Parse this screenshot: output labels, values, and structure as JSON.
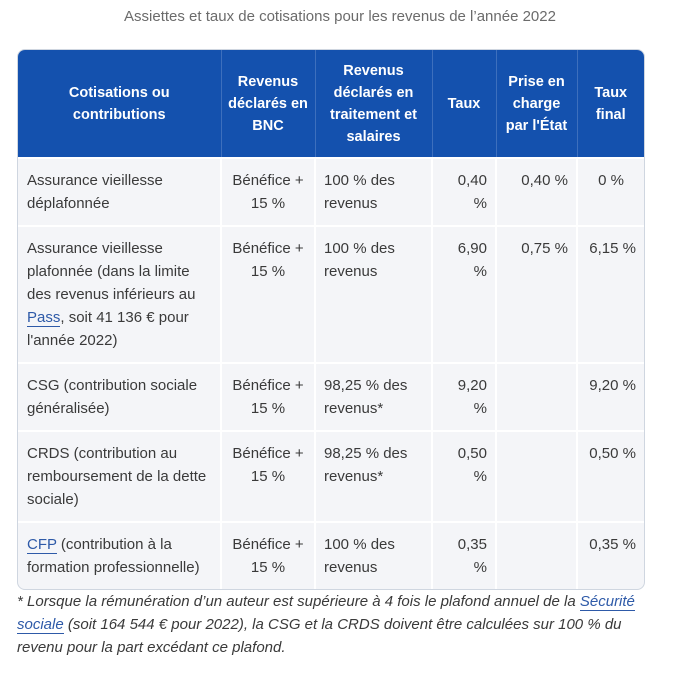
{
  "caption": "Assiettes et taux de cotisations pour les revenus de l’année 2022",
  "headers": {
    "col1": "Cotisations ou contributions",
    "col2": "Revenus déclarés en BNC",
    "col3": "Revenus déclarés en traitement et salaires",
    "col4": "Taux",
    "col5": "Prise en charge par l'État",
    "col6": "Taux final"
  },
  "rows": [
    {
      "label": "Assurance vieillesse déplafonnée",
      "bnc": "Bénéfice + 15 %",
      "ts": "100 % des revenus",
      "taux": "0,40 %",
      "etat": "0,40 %",
      "final": "0 %"
    },
    {
      "label_pre": "Assurance vieillesse plafonnée (dans la limite des revenus inférieurs au ",
      "label_link": "Pass",
      "label_post": ", soit 41 136 € pour l'année 2022)",
      "bnc": "Bénéfice + 15 %",
      "ts": "100 % des revenus",
      "taux": "6,90 %",
      "etat": "0,75 %",
      "final": "6,15 %"
    },
    {
      "label": "CSG (contribution sociale généralisée)",
      "bnc": "Bénéfice + 15 %",
      "ts": "98,25 % des revenus*",
      "taux": "9,20 %",
      "etat": "",
      "final": "9,20 %"
    },
    {
      "label": "CRDS (contribution au remboursement de la dette sociale)",
      "bnc": "Bénéfice + 15 %",
      "ts": "98,25 % des revenus*",
      "taux": "0,50 %",
      "etat": "",
      "final": "0,50 %"
    },
    {
      "label_link": "CFP",
      "label_post": " (contribution à la formation professionnelle)",
      "bnc": "Bénéfice + 15 %",
      "ts": "100 % des revenus",
      "taux": "0,35 %",
      "etat": "",
      "final": "0,35 %"
    }
  ],
  "footnote": {
    "pre": "* Lorsque la rémunération d’un auteur est supérieure à 4 fois le plafond annuel de la ",
    "link": "Sécurité sociale",
    "post": " (soit 164 544 € pour 2022), la CSG et la CRDS doivent être calculées sur 100 % du revenu pour la part excédant ce plafond."
  }
}
